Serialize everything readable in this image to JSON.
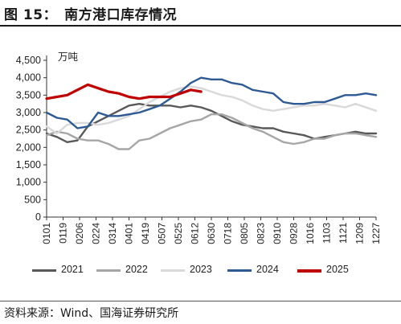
{
  "figure": {
    "title": "图 15：　南方港口库存情况",
    "source": "资料来源：Wind、国海证券研究所"
  },
  "chart_data": {
    "type": "line",
    "unit_label": "万吨",
    "ylim": [
      0,
      4500
    ],
    "yticks": [
      0,
      500,
      1000,
      1500,
      2000,
      2500,
      3000,
      3500,
      4000,
      4500
    ],
    "ytick_labels": [
      "0",
      "500",
      "1,000",
      "1,500",
      "2,000",
      "2,500",
      "3,000",
      "3,500",
      "4,000",
      "4,500"
    ],
    "x_tick_labels": [
      "0101",
      "0119",
      "0206",
      "0224",
      "0314",
      "0401",
      "0419",
      "0507",
      "0525",
      "0612",
      "0630",
      "0718",
      "0805",
      "0823",
      "0910",
      "0928",
      "1016",
      "1103",
      "1121",
      "1209",
      "1227"
    ],
    "grid": false,
    "legend_position": "bottom",
    "series": [
      {
        "name": "2021",
        "color": "#595959",
        "values": [
          2400,
          2300,
          2150,
          2200,
          2600,
          2750,
          2900,
          3050,
          3200,
          3250,
          3200,
          3200,
          3200,
          3150,
          3200,
          3150,
          3050,
          2900,
          2750,
          2650,
          2600,
          2550,
          2550,
          2450,
          2400,
          2350,
          2250,
          2300,
          2350,
          2400,
          2450,
          2400,
          2400
        ]
      },
      {
        "name": "2022",
        "color": "#a6a6a6",
        "values": [
          2350,
          2450,
          2400,
          2250,
          2200,
          2200,
          2100,
          1950,
          1950,
          2200,
          2250,
          2400,
          2550,
          2650,
          2750,
          2800,
          2950,
          2950,
          2850,
          2700,
          2550,
          2450,
          2300,
          2150,
          2100,
          2150,
          2250,
          2250,
          2350,
          2400,
          2400,
          2350,
          2300
        ]
      },
      {
        "name": "2023",
        "color": "#d9d9d9",
        "values": [
          2600,
          2400,
          2650,
          2700,
          2700,
          2650,
          2700,
          2800,
          2900,
          3100,
          3300,
          3450,
          3600,
          3700,
          3750,
          3700,
          3600,
          3500,
          3450,
          3350,
          3200,
          3100,
          3050,
          3100,
          3150,
          3200,
          3200,
          3250,
          3200,
          3150,
          3250,
          3150,
          3050
        ]
      },
      {
        "name": "2024",
        "color": "#2e5a94",
        "values": [
          3000,
          2850,
          2800,
          2550,
          2600,
          3000,
          2900,
          2900,
          2950,
          3000,
          3100,
          3200,
          3400,
          3600,
          3850,
          4000,
          3950,
          3950,
          3850,
          3800,
          3650,
          3600,
          3550,
          3300,
          3250,
          3250,
          3300,
          3300,
          3400,
          3500,
          3500,
          3550,
          3500
        ]
      },
      {
        "name": "2025",
        "color": "#c00000",
        "values": [
          3400,
          3450,
          3500,
          3650,
          3800,
          3700,
          3600,
          3550,
          3450,
          3400,
          3450,
          3450,
          3450,
          3550,
          3650,
          3600
        ]
      }
    ]
  }
}
